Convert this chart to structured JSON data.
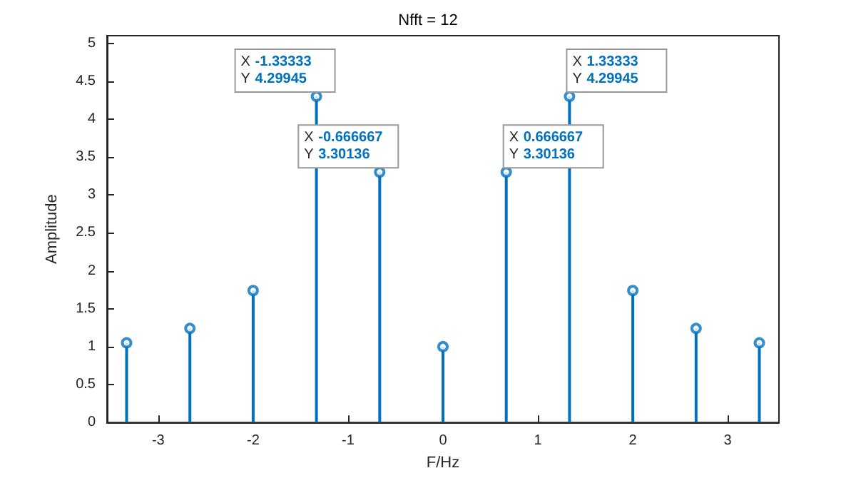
{
  "chart_data": {
    "type": "lollipop",
    "title": "Nfft = 12",
    "xlabel": "F/Hz",
    "ylabel": "Amplitude",
    "x": [
      -3.33333,
      -2.66667,
      -2,
      -1.33333,
      -0.666667,
      0,
      0.666667,
      1.33333,
      2,
      2.66667,
      3.33333
    ],
    "values": [
      1.05,
      1.24,
      1.74,
      4.29945,
      3.30136,
      1.0,
      3.30136,
      4.29945,
      1.74,
      1.24,
      1.05
    ],
    "color": "#0072bd",
    "marker": "circle",
    "grid": false,
    "xlim": [
      -3.54,
      3.54
    ],
    "xticks": [
      -3,
      -2,
      -1,
      0,
      1,
      2,
      3
    ],
    "ylim": [
      0,
      5.1
    ],
    "yticks": [
      0,
      0.5,
      1,
      1.5,
      2,
      2.5,
      3,
      3.5,
      4,
      4.5,
      5
    ],
    "annotations": [
      {
        "text": "X -1.33333\nY 4.29945",
        "x": -1.33333,
        "y": 4.29945
      },
      {
        "text": "X -0.666667\nY 3.30136",
        "x": -0.666667,
        "y": 3.30136
      },
      {
        "text": "X 0.666667\nY 3.30136",
        "x": 0.666667,
        "y": 3.30136
      },
      {
        "text": "X 1.33333\nY 4.29945",
        "x": 1.33333,
        "y": 4.29945
      }
    ]
  }
}
